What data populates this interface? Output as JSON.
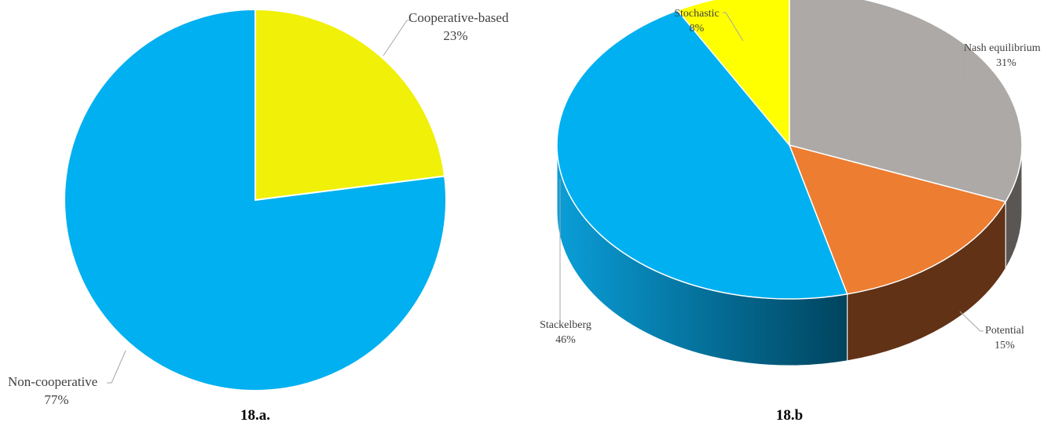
{
  "chart_data": [
    {
      "type": "pie",
      "caption": "18.a.",
      "slices": [
        {
          "label": "Cooperative-based",
          "pct_label": "23%",
          "value": 23,
          "color": "#F0F008"
        },
        {
          "label": "Non-cooperative",
          "pct_label": "77%",
          "value": 77,
          "color": "#00B0F0"
        }
      ]
    },
    {
      "type": "pie",
      "style": "3d",
      "caption": "18.b",
      "slices": [
        {
          "label": "Nash equilibrium",
          "pct_label": "31%",
          "value": 31,
          "color": "#ADA9A6",
          "side_color": "#5A5654"
        },
        {
          "label": "Potential",
          "pct_label": "15%",
          "value": 15,
          "color": "#ED7D31",
          "side_color": "#613216"
        },
        {
          "label": "Stackelberg",
          "pct_label": "46%",
          "value": 46,
          "color": "#00B0F0",
          "side_color": "#0A5F86"
        },
        {
          "label": "Stochastic",
          "pct_label": "8%",
          "value": 8,
          "color": "#FFFF00",
          "side_color": "#8A8A00"
        }
      ]
    }
  ]
}
